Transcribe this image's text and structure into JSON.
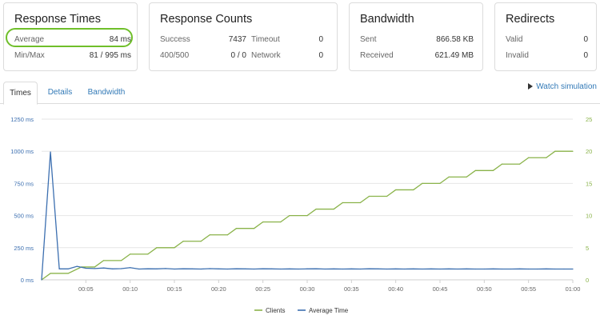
{
  "response_times": {
    "title": "Response Times",
    "average_label": "Average",
    "average_value": "84 ms",
    "minmax_label": "Min/Max",
    "minmax_value": "81 / 995 ms"
  },
  "response_counts": {
    "title": "Response Counts",
    "success_label": "Success",
    "success_value": "7437",
    "timeout_label": "Timeout",
    "timeout_value": "0",
    "status_label": "400/500",
    "status_value": "0 / 0",
    "network_label": "Network",
    "network_value": "0"
  },
  "bandwidth": {
    "title": "Bandwidth",
    "sent_label": "Sent",
    "sent_value": "866.58 KB",
    "received_label": "Received",
    "received_value": "621.49 MB"
  },
  "redirects": {
    "title": "Redirects",
    "valid_label": "Valid",
    "valid_value": "0",
    "invalid_label": "Invalid",
    "invalid_value": "0"
  },
  "tabs": [
    "Times",
    "Details",
    "Bandwidth"
  ],
  "active_tab": "Times",
  "watch_label": "Watch simulation",
  "colors": {
    "clients": "#8ab34a",
    "average_time": "#3c6fb0",
    "highlight": "#6fbf2a",
    "link": "#337ab7"
  },
  "chart_data": {
    "type": "line",
    "left_axis": {
      "ticks": [
        "0 ms",
        "250 ms",
        "500 ms",
        "750 ms",
        "1000 ms",
        "1250 ms"
      ],
      "range": [
        0,
        1250
      ]
    },
    "right_axis": {
      "ticks": [
        "0",
        "5",
        "10",
        "15",
        "20",
        "25"
      ],
      "range": [
        0,
        25
      ]
    },
    "x_ticks": [
      "00:05",
      "00:10",
      "00:15",
      "00:20",
      "00:25",
      "00:30",
      "00:35",
      "00:40",
      "00:45",
      "00:50",
      "00:55",
      "01:00"
    ],
    "x_range": [
      0,
      60
    ],
    "series": [
      {
        "name": "Clients",
        "axis": "right",
        "steps": [
          [
            0,
            0
          ],
          [
            1,
            1
          ],
          [
            3,
            1
          ],
          [
            4.5,
            2
          ],
          [
            6,
            2
          ],
          [
            7,
            3
          ],
          [
            9,
            3
          ],
          [
            10,
            4
          ],
          [
            12,
            4
          ],
          [
            13,
            5
          ],
          [
            15,
            5
          ],
          [
            16,
            6
          ],
          [
            18,
            6
          ],
          [
            19,
            7
          ],
          [
            21,
            7
          ],
          [
            22,
            8
          ],
          [
            24,
            8
          ],
          [
            25,
            9
          ],
          [
            27,
            9
          ],
          [
            28,
            10
          ],
          [
            30,
            10
          ],
          [
            31,
            11
          ],
          [
            33,
            11
          ],
          [
            34,
            12
          ],
          [
            36,
            12
          ],
          [
            37,
            13
          ],
          [
            39,
            13
          ],
          [
            40,
            14
          ],
          [
            42,
            14
          ],
          [
            43,
            15
          ],
          [
            45,
            15
          ],
          [
            46,
            16
          ],
          [
            48,
            16
          ],
          [
            49,
            17
          ],
          [
            51,
            17
          ],
          [
            52,
            18
          ],
          [
            54,
            18
          ],
          [
            55,
            19
          ],
          [
            57,
            19
          ],
          [
            58,
            20
          ],
          [
            60,
            20
          ]
        ]
      },
      {
        "name": "Average Time",
        "axis": "left",
        "points": [
          [
            0,
            0
          ],
          [
            1,
            995
          ],
          [
            2,
            85
          ],
          [
            3,
            85
          ],
          [
            4,
            105
          ],
          [
            5,
            90
          ],
          [
            6,
            88
          ],
          [
            7,
            92
          ],
          [
            8,
            85
          ],
          [
            9,
            87
          ],
          [
            10,
            95
          ],
          [
            11,
            84
          ],
          [
            12,
            86
          ],
          [
            13,
            85
          ],
          [
            14,
            88
          ],
          [
            15,
            84
          ],
          [
            16,
            86
          ],
          [
            17,
            85
          ],
          [
            18,
            84
          ],
          [
            19,
            87
          ],
          [
            20,
            85
          ],
          [
            21,
            84
          ],
          [
            22,
            86
          ],
          [
            23,
            85
          ],
          [
            24,
            84
          ],
          [
            25,
            86
          ],
          [
            26,
            85
          ],
          [
            27,
            84
          ],
          [
            28,
            85
          ],
          [
            29,
            84
          ],
          [
            30,
            85
          ],
          [
            31,
            86
          ],
          [
            32,
            84
          ],
          [
            33,
            85
          ],
          [
            34,
            84
          ],
          [
            35,
            85
          ],
          [
            36,
            84
          ],
          [
            37,
            86
          ],
          [
            38,
            85
          ],
          [
            39,
            84
          ],
          [
            40,
            85
          ],
          [
            41,
            84
          ],
          [
            42,
            85
          ],
          [
            43,
            84
          ],
          [
            44,
            85
          ],
          [
            45,
            84
          ],
          [
            46,
            85
          ],
          [
            47,
            84
          ],
          [
            48,
            85
          ],
          [
            49,
            84
          ],
          [
            50,
            84
          ],
          [
            51,
            85
          ],
          [
            52,
            84
          ],
          [
            53,
            84
          ],
          [
            54,
            85
          ],
          [
            55,
            84
          ],
          [
            56,
            84
          ],
          [
            57,
            85
          ],
          [
            58,
            84
          ],
          [
            59,
            84
          ],
          [
            60,
            84
          ]
        ]
      }
    ],
    "legend": [
      "Clients",
      "Average Time"
    ],
    "legend_position": "bottom"
  }
}
